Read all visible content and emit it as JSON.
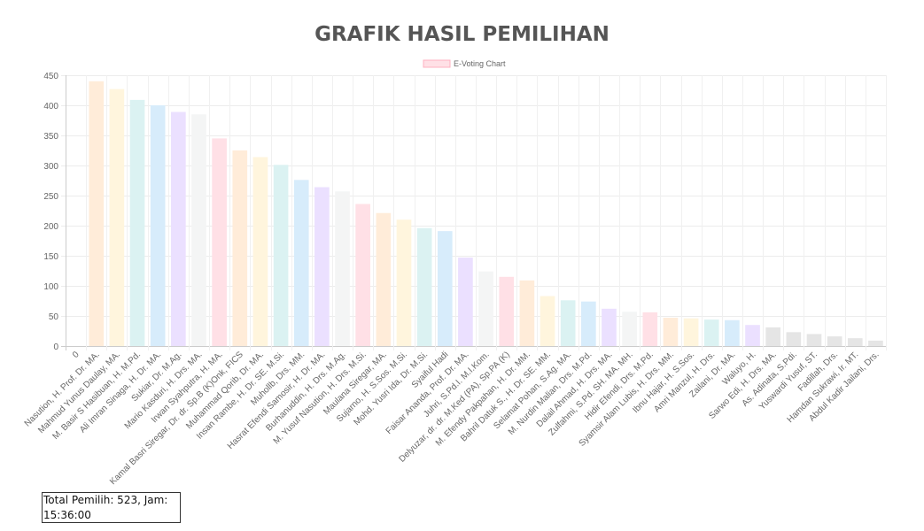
{
  "title": "GRAFIK HASIL PEMILIHAN",
  "footer": {
    "total_text": "Total Pemilih: 523, Jam: 15:36:00"
  },
  "chart_data": {
    "type": "bar",
    "title": "GRAFIK HASIL PEMILIHAN",
    "legend": {
      "label": "E-Voting Chart",
      "position": "top"
    },
    "grid": true,
    "ylim": [
      0,
      450
    ],
    "yticks": [
      0,
      50,
      100,
      150,
      200,
      250,
      300,
      350,
      400,
      450
    ],
    "categories": [
      "0",
      "Nasution, H. Prof. Dr. MA.",
      "Mahmud Yunus Daulay, MA.",
      "M. Basir S Hasibuan, H. M.Pd.",
      "Ali Imran Sinaga, H. Dr. MA.",
      "Sukiar, Dr. M.Ag.",
      "Mario Kasduri, H. Drs. MA.",
      "Irwan Syahputra, H. MA.",
      "Kamal Basri Siregar, Dr. dr. Sp.B (K)Onk, FICS",
      "Muhammad Qorib, Dr. MA.",
      "Insan Rambe, H. Dr. SE. M.Si.",
      "Muhollb, Drs. MM.",
      "Hasrat Efendi Samosir, H. Dr. MA.",
      "Burhanuddin, H. Drs. M.Ag.",
      "M. Yusuf Nasution, H. Drs. M.Si.",
      "Maulana Siregar, MA.",
      "Sujarno, H. S.Sos. M.Si.",
      "Mohd. Yusri Ida, Dr. M.Si.",
      "Syaiful Hadi",
      "Faisar Ananda, Prof. Dr. MA.",
      "Juhri, S.Pd.I. M.I.Kom.",
      "Delyuzar, dr. dr. M.Ked (PA), Sp.PA (K)",
      "M. Efendy Pakpahan, H. Dr. MM.",
      "Bahril Datuk S., H. Dr. SE. MM.",
      "Selamat Pohan, S.Ag. MA.",
      "M. Nurdin Malian, Drs. M.Pd.",
      "Dalail Ahmad, H. Drs. MA.",
      "Zulfahmi, S.Pd. SH. MA. MH.",
      "Hidir Efendi, Drs. M.Pd.",
      "Syamsir Alam Lubis, H. Drs. MM.",
      "Ibnu Hajar, H. S.Sos.",
      "Amri Manzul, H. Drs.",
      "Zailani, Dr. MA.",
      "Waluyo, H.",
      "Sarwo Edi, H. Drs. MA.",
      "As. Adinata, S.Pdi.",
      "Yuswardi Yusuf, ST.",
      "Fadillah, Drs.",
      "Hamdan Sukrawi, Ir. MT.",
      "Abdul Kadir Jailani, Drs."
    ],
    "values": [
      0,
      440,
      427,
      409,
      400,
      389,
      385,
      345,
      325,
      314,
      301,
      276,
      264,
      257,
      236,
      221,
      210,
      196,
      191,
      147,
      124,
      115,
      109,
      83,
      76,
      74,
      62,
      57,
      56,
      47,
      46,
      44,
      43,
      35,
      31,
      23,
      20,
      16,
      13,
      9
    ],
    "colors": {
      "fills": [
        "#ffe0e6",
        "#ffecd9",
        "#fff5dd",
        "#dbf2f2",
        "#d7ecfb",
        "#ebe0ff",
        "#f4f5f5"
      ],
      "tail_fill": "#e5e5e5",
      "legend_fill": "#ffe0e6",
      "legend_stroke": "#ffb0c0"
    }
  }
}
